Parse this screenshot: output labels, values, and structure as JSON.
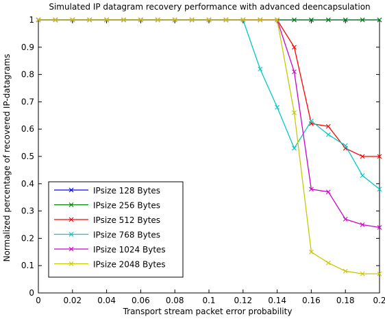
{
  "chart_data": {
    "type": "line",
    "title": "Simulated IP datagram recovery performance with advanced deencapsulation",
    "xlabel": "Transport stream packet error probability",
    "ylabel": "Normalized percentage of recovered IP-datagrams",
    "xlim": [
      0,
      0.2
    ],
    "ylim": [
      0,
      1
    ],
    "grid": false,
    "legend_position": "bottom-left",
    "xticks": [
      "0",
      "0.02",
      "0.04",
      "0.06",
      "0.08",
      "0.1",
      "0.12",
      "0.14",
      "0.16",
      "0.18",
      "0.2"
    ],
    "yticks": [
      "0",
      "0.1",
      "0.2",
      "0.3",
      "0.4",
      "0.5",
      "0.6",
      "0.7",
      "0.8",
      "0.9",
      "1"
    ],
    "x": [
      0,
      0.01,
      0.02,
      0.03,
      0.04,
      0.05,
      0.06,
      0.07,
      0.08,
      0.09,
      0.1,
      0.11,
      0.12,
      0.13,
      0.14,
      0.15,
      0.16,
      0.17,
      0.18,
      0.19,
      0.2
    ],
    "series": [
      {
        "name": "IPsize 128 Bytes",
        "color": "#0000ff",
        "values": [
          1,
          1,
          1,
          1,
          1,
          1,
          1,
          1,
          1,
          1,
          1,
          1,
          1,
          1,
          1,
          1,
          1,
          1,
          1,
          1,
          1
        ]
      },
      {
        "name": "IPsize 256 Bytes",
        "color": "#008000",
        "values": [
          1,
          1,
          1,
          1,
          1,
          1,
          1,
          1,
          1,
          1,
          1,
          1,
          1,
          1,
          1,
          1,
          1,
          1,
          1,
          1,
          1
        ]
      },
      {
        "name": "IPsize 512 Bytes",
        "color": "#ff0000",
        "values": [
          1,
          1,
          1,
          1,
          1,
          1,
          1,
          1,
          1,
          1,
          1,
          1,
          1,
          1,
          1,
          0.9,
          0.62,
          0.61,
          0.53,
          0.5,
          0.5
        ]
      },
      {
        "name": "IPsize 768 Bytes",
        "color": "#00c8c8",
        "values": [
          1,
          1,
          1,
          1,
          1,
          1,
          1,
          1,
          1,
          1,
          1,
          1,
          1,
          0.82,
          0.68,
          0.53,
          0.63,
          0.58,
          0.54,
          0.43,
          0.38
        ]
      },
      {
        "name": "IPsize 1024 Bytes",
        "color": "#cc00cc",
        "values": [
          1,
          1,
          1,
          1,
          1,
          1,
          1,
          1,
          1,
          1,
          1,
          1,
          1,
          1,
          1,
          0.81,
          0.38,
          0.37,
          0.27,
          0.25,
          0.24
        ]
      },
      {
        "name": "IPsize 2048 Bytes",
        "color": "#c8c800",
        "values": [
          1,
          1,
          1,
          1,
          1,
          1,
          1,
          1,
          1,
          1,
          1,
          1,
          1,
          1,
          1,
          0.66,
          0.15,
          0.11,
          0.08,
          0.07,
          0.07
        ]
      }
    ]
  }
}
